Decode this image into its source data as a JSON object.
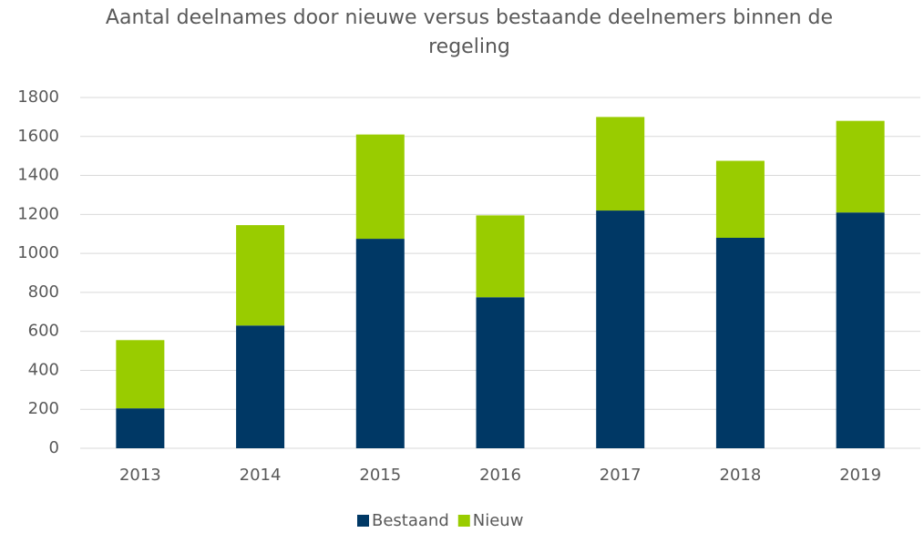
{
  "chart_data": {
    "type": "stacked_bar",
    "title": "Aantal deelnames door nieuwe versus bestaande deelnemers binnen de regeling",
    "categories": [
      "2013",
      "2014",
      "2015",
      "2016",
      "2017",
      "2018",
      "2019"
    ],
    "series": [
      {
        "name": "Bestaand",
        "color": "#003865",
        "values": [
          205,
          630,
          1075,
          775,
          1220,
          1080,
          1210
        ]
      },
      {
        "name": "Nieuw",
        "color": "#99cc00",
        "values": [
          350,
          515,
          535,
          420,
          480,
          395,
          470
        ]
      }
    ],
    "ylim": [
      0,
      1800
    ],
    "yticks": [
      0,
      200,
      400,
      600,
      800,
      1000,
      1200,
      1400,
      1600,
      1800
    ],
    "grid": true,
    "legend": "bottom"
  }
}
